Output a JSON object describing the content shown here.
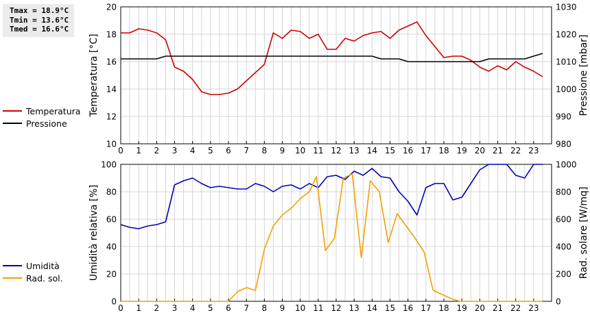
{
  "stats": {
    "tmax": "Tmax = 18.9°C",
    "tmin": "Tmin = 13.6°C",
    "tmed": "Tmed = 16.6°C"
  },
  "legend_top": [
    {
      "label": "Temperatura",
      "color": "#cc0000"
    },
    {
      "label": "Pressione",
      "color": "#000000"
    }
  ],
  "legend_bottom": [
    {
      "label": "Umidità",
      "color": "#0000bb"
    },
    {
      "label": "Rad. sol.",
      "color": "#f0a000"
    }
  ],
  "chart_data": [
    {
      "type": "line",
      "xlim": [
        0,
        24
      ],
      "xticks": [
        "0",
        "1",
        "2",
        "3",
        "4",
        "5",
        "6",
        "7",
        "8",
        "9",
        "10",
        "11",
        "12",
        "13",
        "14",
        "15",
        "16",
        "17",
        "18",
        "19",
        "20",
        "21",
        "22",
        "23"
      ],
      "ylabel": "Temperatura [°C]",
      "ylim": [
        10,
        20
      ],
      "yticks": [
        "10",
        "12",
        "14",
        "16",
        "18",
        "20"
      ],
      "y2label": "Pressione [mbar]",
      "y2lim": [
        980,
        1030
      ],
      "y2ticks": [
        "980",
        "990",
        "1000",
        "1010",
        "1020",
        "1030"
      ],
      "grid": true,
      "legend": "left",
      "series": [
        {
          "name": "Temperatura",
          "color": "#cc0000",
          "axis": "left",
          "x": [
            0,
            0.5,
            1,
            1.5,
            2,
            2.5,
            3,
            3.5,
            4,
            4.5,
            5,
            5.5,
            6,
            6.5,
            7,
            7.5,
            8,
            8.5,
            9,
            9.5,
            10,
            10.5,
            11,
            11.5,
            12,
            12.5,
            13,
            13.5,
            14,
            14.5,
            15,
            15.5,
            16,
            16.5,
            17,
            17.5,
            18,
            18.5,
            19,
            19.5,
            20,
            20.5,
            21,
            21.5,
            22,
            22.5,
            23,
            23.5
          ],
          "y": [
            18.1,
            18.1,
            18.4,
            18.3,
            18.1,
            17.6,
            15.6,
            15.3,
            14.7,
            13.8,
            13.6,
            13.6,
            13.7,
            14.0,
            14.6,
            15.2,
            15.8,
            18.1,
            17.7,
            18.3,
            18.2,
            17.7,
            18.0,
            16.9,
            16.9,
            17.7,
            17.5,
            17.9,
            18.1,
            18.2,
            17.7,
            18.3,
            18.6,
            18.9,
            17.9,
            17.1,
            16.3,
            16.4,
            16.4,
            16.1,
            15.6,
            15.3,
            15.7,
            15.4,
            16.0,
            15.6,
            15.3,
            14.9
          ]
        },
        {
          "name": "Pressione",
          "color": "#000000",
          "axis": "right",
          "x": [
            0,
            0.5,
            1,
            1.5,
            2,
            2.5,
            3,
            3.5,
            4,
            4.5,
            5,
            5.5,
            6,
            6.5,
            7,
            7.5,
            8,
            8.5,
            9,
            9.5,
            10,
            10.5,
            11,
            11.5,
            12,
            12.5,
            13,
            13.5,
            14,
            14.5,
            15,
            15.5,
            16,
            16.5,
            17,
            17.5,
            18,
            18.5,
            19,
            19.5,
            20,
            20.5,
            21,
            21.5,
            22,
            22.5,
            23,
            23.5
          ],
          "y": [
            1011,
            1011,
            1011,
            1011,
            1011,
            1012,
            1012,
            1012,
            1012,
            1012,
            1012,
            1012,
            1012,
            1012,
            1012,
            1012,
            1012,
            1012,
            1012,
            1012,
            1012,
            1012,
            1012,
            1012,
            1012,
            1012,
            1012,
            1012,
            1012,
            1011,
            1011,
            1011,
            1010,
            1010,
            1010,
            1010,
            1010,
            1010,
            1010,
            1010,
            1010,
            1011,
            1011,
            1011,
            1011,
            1011,
            1012,
            1013
          ]
        }
      ]
    },
    {
      "type": "line",
      "xlim": [
        0,
        24
      ],
      "xticks": [
        "0",
        "1",
        "2",
        "3",
        "4",
        "5",
        "6",
        "7",
        "8",
        "9",
        "10",
        "11",
        "12",
        "13",
        "14",
        "15",
        "16",
        "17",
        "18",
        "19",
        "20",
        "21",
        "22",
        "23"
      ],
      "ylabel": "Umidità relativa [%]",
      "ylim": [
        0,
        100
      ],
      "yticks": [
        "0",
        "20",
        "40",
        "60",
        "80",
        "100"
      ],
      "y2label": "Rad. solare [W/mq]",
      "y2lim": [
        0,
        1000
      ],
      "y2ticks": [
        "0",
        "200",
        "400",
        "600",
        "800",
        "1000"
      ],
      "grid": true,
      "legend": "left",
      "series": [
        {
          "name": "Umidità",
          "color": "#0000bb",
          "axis": "left",
          "x": [
            0,
            0.5,
            1,
            1.5,
            2,
            2.5,
            3,
            3.5,
            4,
            4.5,
            5,
            5.5,
            6,
            6.5,
            7,
            7.5,
            8,
            8.5,
            9,
            9.5,
            10,
            10.5,
            11,
            11.5,
            12,
            12.5,
            13,
            13.5,
            14,
            14.5,
            15,
            15.5,
            16,
            16.5,
            17,
            17.5,
            18,
            18.5,
            19,
            19.5,
            20,
            20.5,
            21,
            21.5,
            22,
            22.5,
            23,
            23.5
          ],
          "y": [
            56,
            54,
            53,
            55,
            56,
            58,
            85,
            88,
            90,
            86,
            83,
            84,
            83,
            82,
            82,
            86,
            84,
            80,
            84,
            85,
            82,
            86,
            83,
            91,
            92,
            89,
            95,
            92,
            97,
            91,
            90,
            80,
            73,
            63,
            83,
            86,
            86,
            74,
            76,
            86,
            96,
            100,
            100,
            100,
            92,
            90,
            100,
            100
          ]
        },
        {
          "name": "Rad. sol.",
          "color": "#f0a000",
          "axis": "right",
          "x": [
            0,
            0.5,
            1,
            1.5,
            2,
            2.5,
            3,
            3.5,
            4,
            4.5,
            5,
            5.5,
            6,
            6.5,
            7,
            7.5,
            8,
            8.5,
            9,
            9.5,
            10,
            10.5,
            10.9,
            11.4,
            11.9,
            12.4,
            12.9,
            13.4,
            13.9,
            14.4,
            14.9,
            15.4,
            15.9,
            16.4,
            16.9,
            17.4,
            17.9,
            18.4,
            18.9,
            19.4,
            20,
            20.5,
            21,
            21.5,
            22,
            22.5,
            23,
            23.5
          ],
          "y": [
            0,
            0,
            0,
            0,
            0,
            0,
            0,
            0,
            0,
            0,
            0,
            0,
            0,
            70,
            100,
            80,
            380,
            550,
            630,
            680,
            750,
            800,
            910,
            370,
            460,
            900,
            930,
            320,
            880,
            800,
            430,
            640,
            550,
            460,
            360,
            80,
            50,
            20,
            0,
            0,
            0,
            0,
            0,
            0,
            0,
            0,
            0,
            0
          ]
        }
      ]
    }
  ]
}
